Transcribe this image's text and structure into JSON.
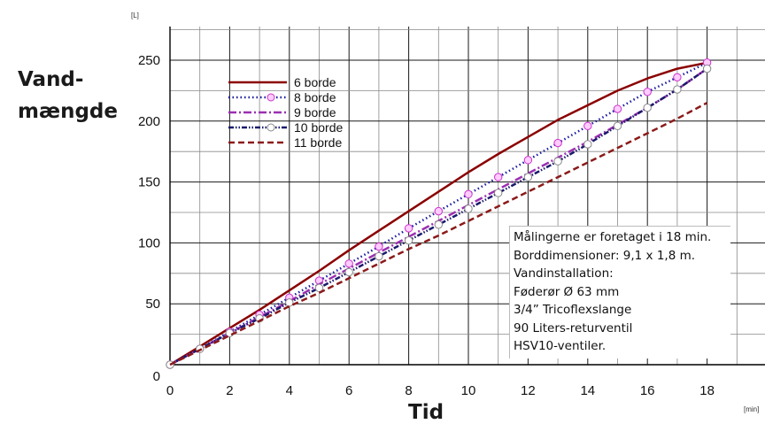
{
  "chart_data": {
    "type": "line",
    "ylabel_lines": [
      "Vand-",
      "mængde"
    ],
    "xlabel": "Tid",
    "y_unit": "[L]",
    "x_unit": "[min]",
    "xlim": [
      0,
      20
    ],
    "ylim": [
      0,
      270
    ],
    "x_ticks": [
      0,
      2,
      4,
      6,
      8,
      10,
      12,
      14,
      16,
      18
    ],
    "y_ticks": [
      0,
      50,
      100,
      150,
      200,
      250
    ],
    "grid": true,
    "legend_position": "top-left",
    "series": [
      {
        "name": "6 borde",
        "color": "#8b0000",
        "style": "solid",
        "marker": "none",
        "x": [
          0,
          1,
          2,
          3,
          4,
          5,
          6,
          7,
          8,
          9,
          10,
          11,
          12,
          13,
          14,
          15,
          16,
          17,
          18
        ],
        "y": [
          0,
          15,
          30,
          45,
          61,
          77,
          94,
          110,
          126,
          142,
          158,
          173,
          187,
          201,
          213,
          225,
          235,
          243,
          248
        ]
      },
      {
        "name": "8 borde",
        "color": "#1a1aa0",
        "style": "dotted",
        "marker": "circle",
        "marker_fill": "#ffccff",
        "marker_edge": "#cc33cc",
        "x": [
          0,
          1,
          2,
          3,
          4,
          5,
          6,
          7,
          8,
          9,
          10,
          11,
          12,
          13,
          14,
          15,
          16,
          17,
          18
        ],
        "y": [
          0,
          13,
          27,
          41,
          55,
          69,
          83,
          97,
          112,
          126,
          140,
          154,
          168,
          182,
          196,
          210,
          224,
          236,
          248
        ]
      },
      {
        "name": "9 borde",
        "color": "#9b30b0",
        "style": "dashdot",
        "marker": "none",
        "x": [
          0,
          1,
          2,
          3,
          4,
          5,
          6,
          7,
          8,
          9,
          10,
          11,
          12,
          13,
          14,
          15,
          16,
          17,
          18
        ],
        "y": [
          0,
          13,
          26,
          39,
          52,
          66,
          79,
          92,
          105,
          118,
          131,
          144,
          157,
          170,
          183,
          197,
          211,
          226,
          243
        ]
      },
      {
        "name": "10 borde",
        "color": "#1a1a6b",
        "style": "dashdotdot",
        "marker": "circle",
        "marker_fill": "#ffffff",
        "marker_edge": "#888888",
        "x": [
          0,
          1,
          2,
          3,
          4,
          5,
          6,
          7,
          8,
          9,
          10,
          11,
          12,
          13,
          14,
          15,
          16,
          17,
          18
        ],
        "y": [
          0,
          13,
          26,
          38,
          51,
          63,
          76,
          89,
          102,
          115,
          128,
          141,
          154,
          167,
          181,
          196,
          211,
          226,
          243
        ]
      },
      {
        "name": "11 borde",
        "color": "#8b1a1a",
        "style": "dashed",
        "marker": "none",
        "x": [
          0,
          1,
          2,
          3,
          4,
          5,
          6,
          7,
          8,
          9,
          10,
          11,
          12,
          13,
          14,
          15,
          16,
          17,
          18
        ],
        "y": [
          0,
          12,
          24,
          36,
          48,
          59,
          71,
          83,
          95,
          106,
          118,
          130,
          142,
          154,
          166,
          178,
          190,
          202,
          215
        ]
      }
    ]
  },
  "note_lines": [
    "Målingerne er foretaget i 18 min.",
    "Borddimensioner: 9,1 x 1,8 m.",
    "Vandinstallation:",
    "Føderør Ø 63 mm",
    "3/4” Tricoflexslange",
    "90 Liters-returventil",
    "HSV10-ventiler."
  ]
}
